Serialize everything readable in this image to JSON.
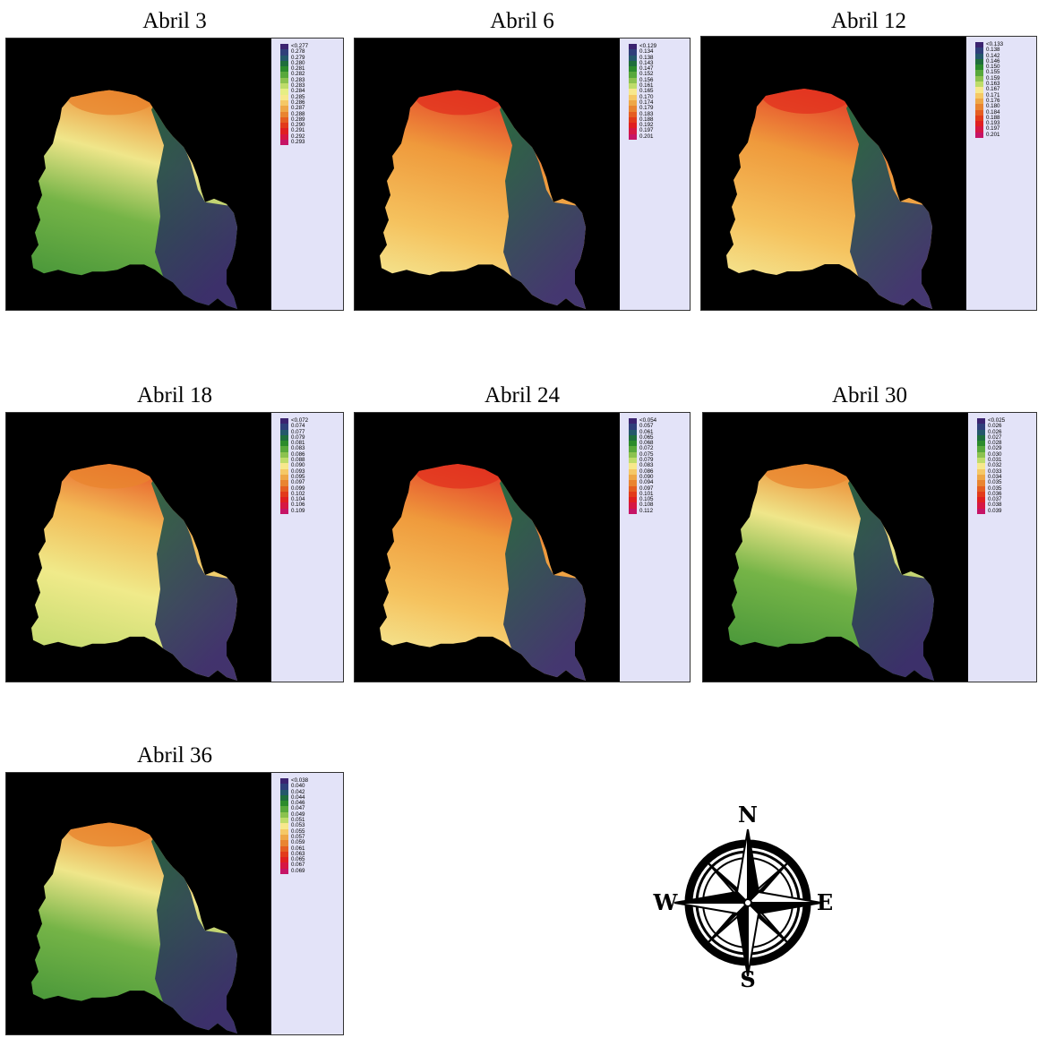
{
  "palette": [
    "#3b2370",
    "#2f3f7a",
    "#24586b",
    "#1f6e3c",
    "#2c8b2c",
    "#58a83b",
    "#8cc24f",
    "#bfdc6a",
    "#e6ee84",
    "#f7e88c",
    "#f5c866",
    "#eea747",
    "#e98431",
    "#e55d22",
    "#e23a1b",
    "#e01f21",
    "#d61744",
    "#c61466"
  ],
  "compass": {
    "north": "N",
    "south": "S",
    "east": "E",
    "west": "W"
  },
  "panels": [
    {
      "title": "Abril 3",
      "style": "cool",
      "legend": [
        "<0.277",
        "0.278",
        "0.279",
        "0.280",
        "0.281",
        "0.282",
        "0.283",
        "0.283",
        "0.284",
        "0.285",
        "0.286",
        "0.287",
        "0.288",
        "0.289",
        "0.290",
        "0.291",
        "0.292",
        "0.293"
      ]
    },
    {
      "title": "Abril 6",
      "style": "warm",
      "legend": [
        "<0.129",
        "0.134",
        "0.138",
        "0.143",
        "0.147",
        "0.152",
        "0.156",
        "0.161",
        "0.165",
        "0.170",
        "0.174",
        "0.179",
        "0.183",
        "0.188",
        "0.192",
        "0.197",
        "0.201"
      ]
    },
    {
      "title": "Abril 12",
      "style": "warm",
      "legend": [
        "<0.133",
        "0.138",
        "0.142",
        "0.146",
        "0.150",
        "0.155",
        "0.159",
        "0.163",
        "0.167",
        "0.171",
        "0.176",
        "0.180",
        "0.184",
        "0.188",
        "0.193",
        "0.197",
        "0.201"
      ]
    },
    {
      "title": "Abril 18",
      "style": "mid",
      "legend": [
        "<0.072",
        "0.074",
        "0.077",
        "0.079",
        "0.081",
        "0.083",
        "0.086",
        "0.088",
        "0.090",
        "0.093",
        "0.095",
        "0.097",
        "0.099",
        "0.102",
        "0.104",
        "0.106",
        "0.109"
      ]
    },
    {
      "title": "Abril 24",
      "style": "warm",
      "legend": [
        "<0.054",
        "0.057",
        "0.061",
        "0.065",
        "0.068",
        "0.072",
        "0.075",
        "0.079",
        "0.083",
        "0.086",
        "0.090",
        "0.094",
        "0.097",
        "0.101",
        "0.105",
        "0.108",
        "0.112"
      ]
    },
    {
      "title": "Abril 30",
      "style": "cool",
      "legend": [
        "<0.025",
        "0.026",
        "0.026",
        "0.027",
        "0.028",
        "0.029",
        "0.030",
        "0.031",
        "0.032",
        "0.033",
        "0.034",
        "0.035",
        "0.035",
        "0.036",
        "0.037",
        "0.038",
        "0.039"
      ]
    },
    {
      "title": "Abril 36",
      "style": "cool",
      "legend": [
        "<0.038",
        "0.040",
        "0.042",
        "0.044",
        "0.046",
        "0.047",
        "0.049",
        "0.051",
        "0.053",
        "0.055",
        "0.057",
        "0.059",
        "0.061",
        "0.063",
        "0.065",
        "0.067",
        "0.069"
      ]
    }
  ]
}
